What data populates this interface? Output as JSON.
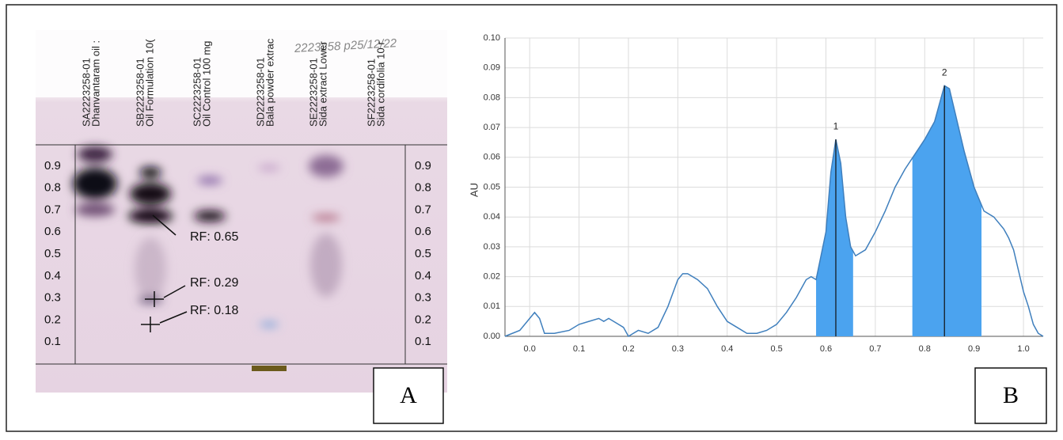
{
  "panel_a": {
    "label": "A",
    "note": "2223258 p25/12/22",
    "lanes": [
      [
        "SA2223258-01",
        "Dhanvantaram oil :"
      ],
      [
        "SB2223258-01",
        "Oil Formulation 10("
      ],
      [
        "SC2223258-01",
        "Oil Control 100 mg"
      ],
      [
        "SD2223258-01",
        "Bala powder extrac"
      ],
      [
        "SE2223258-01",
        "Sida extract Lower"
      ],
      [
        "SF2223258-01",
        "Sida cordifolia 10 r"
      ]
    ],
    "scale": [
      0.1,
      0.2,
      0.3,
      0.4,
      0.5,
      0.6,
      0.7,
      0.8,
      0.9
    ],
    "rf_notes": [
      "RF: 0.65",
      "RF: 0.29",
      "RF: 0.18"
    ]
  },
  "chart_data": {
    "type": "area",
    "panel_label": "B",
    "y_label": "AU",
    "color": "#3f7fbd",
    "fill": "#4ba3ef",
    "grid": true,
    "xlim": [
      -0.05,
      1.04
    ],
    "ylim": [
      0,
      0.1
    ],
    "xticks": [
      {
        "value": 0,
        "label": "0.0"
      },
      0.1,
      0.2,
      0.3,
      0.4,
      0.5,
      0.6,
      0.7,
      0.8,
      0.9,
      {
        "value": 1,
        "label": "1.0"
      }
    ],
    "yticks": [
      {
        "value": 0,
        "label": "0.00"
      },
      0.01,
      0.02,
      0.03,
      0.04,
      0.05,
      0.06,
      0.07,
      0.08,
      0.09,
      {
        "value": 0.1,
        "label": "0.10"
      }
    ],
    "x": [
      -0.05,
      -0.02,
      0.0,
      0.01,
      0.02,
      0.03,
      0.05,
      0.08,
      0.1,
      0.12,
      0.14,
      0.15,
      0.16,
      0.18,
      0.19,
      0.2,
      0.22,
      0.24,
      0.26,
      0.28,
      0.3,
      0.31,
      0.32,
      0.34,
      0.36,
      0.38,
      0.4,
      0.42,
      0.44,
      0.46,
      0.48,
      0.5,
      0.52,
      0.54,
      0.56,
      0.57,
      0.58,
      0.6,
      0.61,
      0.62,
      0.63,
      0.64,
      0.65,
      0.66,
      0.68,
      0.7,
      0.72,
      0.74,
      0.76,
      0.78,
      0.8,
      0.82,
      0.84,
      0.85,
      0.86,
      0.88,
      0.9,
      0.92,
      0.94,
      0.96,
      0.97,
      0.98,
      0.99,
      1.0,
      1.01,
      1.02,
      1.03,
      1.04
    ],
    "values": [
      0.0,
      0.002,
      0.006,
      0.008,
      0.006,
      0.001,
      0.001,
      0.002,
      0.004,
      0.005,
      0.006,
      0.005,
      0.006,
      0.004,
      0.003,
      0.0,
      0.002,
      0.001,
      0.003,
      0.01,
      0.019,
      0.021,
      0.021,
      0.019,
      0.016,
      0.01,
      0.005,
      0.003,
      0.001,
      0.001,
      0.002,
      0.004,
      0.008,
      0.013,
      0.019,
      0.02,
      0.019,
      0.035,
      0.055,
      0.066,
      0.058,
      0.04,
      0.03,
      0.027,
      0.029,
      0.035,
      0.042,
      0.05,
      0.056,
      0.061,
      0.066,
      0.072,
      0.084,
      0.083,
      0.076,
      0.062,
      0.05,
      0.042,
      0.04,
      0.036,
      0.033,
      0.029,
      0.022,
      0.015,
      0.01,
      0.004,
      0.001,
      0.0
    ],
    "peaks": [
      {
        "label": "1",
        "x": 0.62,
        "start": 0.58,
        "end": 0.655
      },
      {
        "label": "2",
        "x": 0.84,
        "start": 0.775,
        "end": 0.915
      }
    ]
  }
}
